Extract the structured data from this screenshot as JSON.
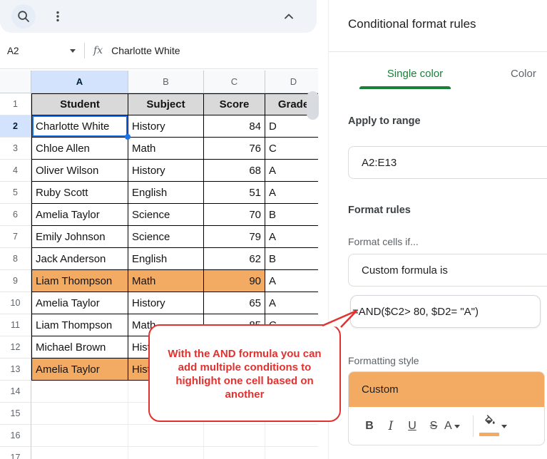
{
  "toolbar": {
    "icons": [
      "search-icon",
      "kebab-menu-icon",
      "collapse-chevron-up-icon"
    ]
  },
  "name_box": {
    "value": "A2"
  },
  "formula_bar": {
    "fx_label": "fx",
    "value": "Charlotte White"
  },
  "sheet": {
    "col_headers": [
      "A",
      "B",
      "C",
      "D"
    ],
    "selected_col": "A",
    "rows": [
      {
        "n": 1,
        "header": true,
        "cells": [
          "Student",
          "Subject",
          "Score",
          "Grade"
        ]
      },
      {
        "n": 2,
        "cells": [
          "Charlotte White",
          "History",
          "84",
          "D"
        ],
        "selected_cell": 0
      },
      {
        "n": 3,
        "cells": [
          "Chloe Allen",
          "Math",
          "76",
          "C"
        ]
      },
      {
        "n": 4,
        "cells": [
          "Oliver Wilson",
          "History",
          "68",
          "A"
        ]
      },
      {
        "n": 5,
        "cells": [
          "Ruby Scott",
          "English",
          "51",
          "A"
        ]
      },
      {
        "n": 6,
        "cells": [
          "Amelia Taylor",
          "Science",
          "70",
          "B"
        ]
      },
      {
        "n": 7,
        "cells": [
          "Emily Johnson",
          "Science",
          "79",
          "A"
        ]
      },
      {
        "n": 8,
        "cells": [
          "Jack Anderson",
          "English",
          "62",
          "B"
        ]
      },
      {
        "n": 9,
        "cells": [
          "Liam Thompson",
          "Math",
          "90",
          "A"
        ],
        "highlight": [
          0,
          1,
          2
        ]
      },
      {
        "n": 10,
        "cells": [
          "Amelia Taylor",
          "History",
          "65",
          "A"
        ]
      },
      {
        "n": 11,
        "cells": [
          "Liam Thompson",
          "Math",
          "85",
          "C"
        ]
      },
      {
        "n": 12,
        "cells": [
          "Michael Brown",
          "History",
          "",
          ""
        ]
      },
      {
        "n": 13,
        "cells": [
          "Amelia Taylor",
          "History",
          "",
          ""
        ],
        "highlight": [
          0,
          1,
          2
        ]
      },
      {
        "n": 14,
        "cells": [
          "",
          "",
          "",
          ""
        ],
        "empty": true
      },
      {
        "n": 15,
        "cells": [
          "",
          "",
          "",
          ""
        ],
        "empty": true
      },
      {
        "n": 16,
        "cells": [
          "",
          "",
          "",
          ""
        ],
        "empty": true
      },
      {
        "n": 17,
        "cells": [
          "",
          "",
          "",
          ""
        ],
        "empty": true
      }
    ]
  },
  "callout": {
    "lines": [
      "With the AND formula you can",
      "add multiple conditions to",
      "highlight one cell based on",
      "another"
    ]
  },
  "panel": {
    "title": "Conditional format rules",
    "tabs": [
      {
        "label": "Single color",
        "active": true
      },
      {
        "label": "Color",
        "active": false
      }
    ],
    "apply_to_range_label": "Apply to range",
    "range_value": "A2:E13",
    "format_rules_label": "Format rules",
    "format_cells_if_label": "Format cells if...",
    "condition_value": "Custom formula is",
    "formula_value": "=AND($C2> 80, $D2= \"A\")",
    "formatting_style_label": "Formatting style",
    "style_preview_text": "Custom",
    "style_toolbar": {
      "bold_label": "B",
      "italic_label": "I",
      "underline_label": "U",
      "strikethrough_label": "S",
      "text_color_label": "A"
    }
  },
  "colors": {
    "highlight_orange": "#f3ab63",
    "selection_blue": "#1a73e8",
    "tab_green": "#188038",
    "callout_red": "#e2312e",
    "header_gray": "#d9d9d9",
    "selected_header_blue": "#d3e3fd"
  }
}
